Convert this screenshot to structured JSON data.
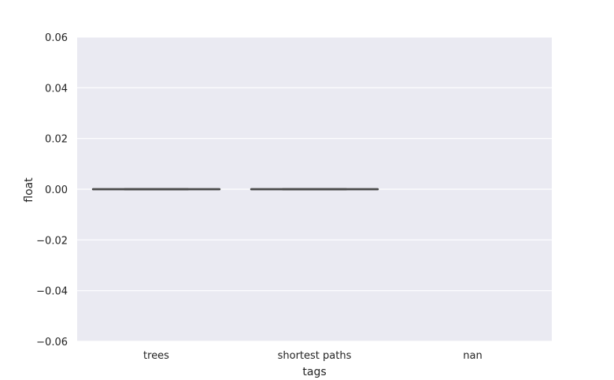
{
  "chart_data": {
    "type": "box",
    "xlabel": "tags",
    "ylabel": "float",
    "categories": [
      "trees",
      "shortest paths",
      "nan"
    ],
    "boxes": [
      {
        "category": "trees",
        "whisker_low": 0.0,
        "q1": 0.0,
        "median": 0.0,
        "q3": 0.0,
        "whisker_high": 0.0
      },
      {
        "category": "shortest paths",
        "whisker_low": 0.0,
        "q1": 0.0,
        "median": 0.0,
        "q3": 0.0,
        "whisker_high": 0.0
      },
      {
        "category": "nan",
        "whisker_low": null,
        "q1": null,
        "median": null,
        "q3": null,
        "whisker_high": null
      }
    ],
    "ylim": [
      -0.06,
      0.06
    ],
    "yticks": [
      0.06,
      0.04,
      0.02,
      0.0,
      -0.02,
      -0.04,
      -0.06
    ],
    "ytick_labels": [
      "0.06",
      "0.04",
      "0.02",
      "0.00",
      "−0.02",
      "−0.04",
      "−0.06"
    ],
    "grid": true,
    "colors": {
      "plot_background": "#eaeaf2",
      "grid": "#ffffff",
      "box_line": "#4c4c4c"
    }
  }
}
